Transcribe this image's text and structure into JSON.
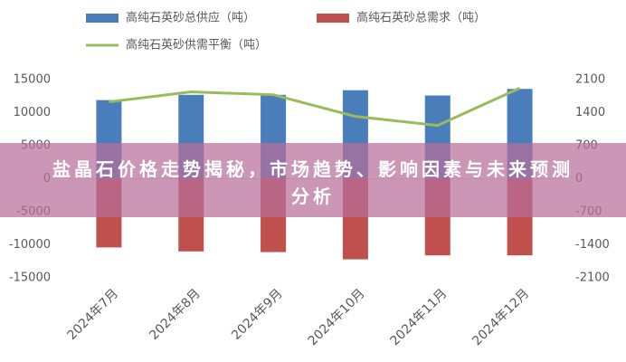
{
  "chart_data": {
    "type": "bar_line",
    "categories": [
      "2024年7月",
      "2024年8月",
      "2024年9月",
      "2024年10月",
      "2024年11月",
      "2024年12月"
    ],
    "series": [
      {
        "name": "高纯石英砂总供应（吨）",
        "color": "#4a7ebb",
        "type": "bar",
        "values": [
          11900,
          12700,
          12700,
          13400,
          12600,
          13600
        ]
      },
      {
        "name": "高纯石英砂总需求（吨）",
        "color": "#c0504d",
        "type": "bar",
        "values": [
          -10400,
          -11000,
          -11100,
          -12200,
          -11600,
          -11600
        ]
      },
      {
        "name": "高纯石英砂供需平衡（吨）",
        "color": "#9bbb59",
        "type": "line",
        "axis": "y2",
        "values": [
          1630,
          1840,
          1780,
          1320,
          1130,
          1920
        ]
      }
    ],
    "ylim": [
      -15000,
      15000
    ],
    "yticks": [
      15000,
      10000,
      5000,
      0,
      -5000,
      -10000,
      -15000
    ],
    "y2lim": [
      -2100,
      2100
    ],
    "y2ticks": [
      2100,
      1400,
      700,
      0,
      -700,
      -1400,
      -2100
    ],
    "grid": false,
    "legend": "top",
    "banner": "盐晶石价格走势揭秘，市场趋势、影响因素与未来预测分析"
  }
}
